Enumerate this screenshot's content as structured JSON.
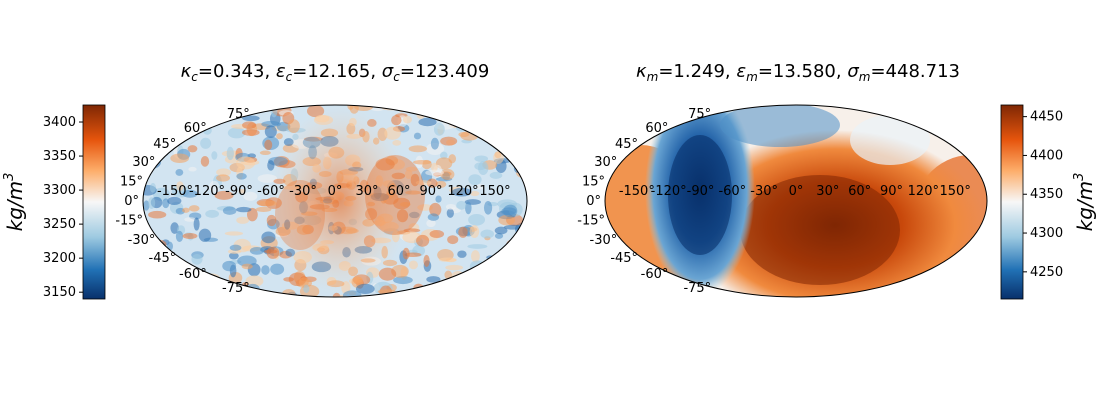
{
  "chart_data": [
    {
      "type": "heatmap",
      "projection": "mollweide",
      "title": {
        "kappa_sym": "κ",
        "kappa_sub": "c",
        "kappa_val": "=0.343, ",
        "eps_sym": "ε",
        "eps_sub": "c",
        "eps_val": "=12.165, ",
        "sig_sym": "σ",
        "sig_sub": "c",
        "sig_val": "=123.409"
      },
      "colorbar": {
        "side": "left",
        "label": {
          "base": "kg/m",
          "exp": "3"
        },
        "range": [
          3140,
          3425
        ],
        "ticks": [
          3150,
          3200,
          3250,
          3300,
          3350,
          3400
        ]
      },
      "lon_labels": [
        "-150°",
        "-120°",
        "-90°",
        "-60°",
        "-30°",
        "0°",
        "30°",
        "60°",
        "90°",
        "120°",
        "150°"
      ],
      "lat_labels": [
        "75°",
        "60°",
        "45°",
        "30°",
        "15°",
        "0°",
        "-15°",
        "-30°",
        "-45°",
        "-60°",
        "-75°"
      ],
      "colormap": "blue-white-orange (diverging)",
      "field_description": "mottled small-scale noise; warmer tones concentrated near central longitudes"
    },
    {
      "type": "heatmap",
      "projection": "mollweide",
      "title": {
        "kappa_sym": "κ",
        "kappa_sub": "m",
        "kappa_val": "=1.249, ",
        "eps_sym": "ε",
        "eps_sub": "m",
        "eps_val": "=13.580, ",
        "sig_sym": "σ",
        "sig_sub": "m",
        "sig_val": "=448.713"
      },
      "colorbar": {
        "side": "right",
        "label": {
          "base": "kg/m",
          "exp": "3"
        },
        "range": [
          4215,
          4465
        ],
        "ticks": [
          4250,
          4300,
          4350,
          4400,
          4450
        ]
      },
      "lon_labels": [
        "-150°",
        "-120°",
        "-90°",
        "-60°",
        "-30°",
        "0°",
        "30°",
        "60°",
        "90°",
        "120°",
        "150°"
      ],
      "lat_labels": [
        "75°",
        "60°",
        "45°",
        "30°",
        "15°",
        "0°",
        "-15°",
        "-30°",
        "-45°",
        "-60°",
        "-75°"
      ],
      "colormap": "blue-white-orange (diverging)",
      "field_description": "smooth large-scale pattern: strong low (blue) near -90° longitude, broad high (dark orange) near 30° longitude"
    }
  ],
  "colors": {
    "low": "#08306b",
    "mid": "#f7f7f7",
    "high": "#7f2704"
  }
}
